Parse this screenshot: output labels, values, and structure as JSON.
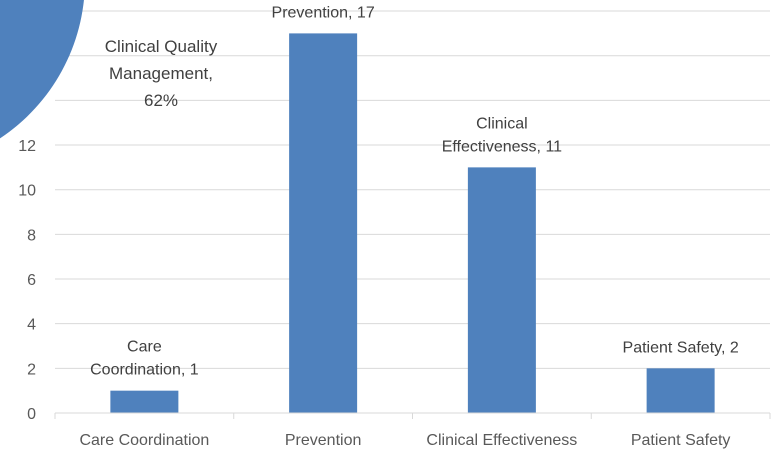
{
  "chart_data": {
    "type": "bar",
    "categories": [
      "Care Coordination",
      "Prevention",
      "Clinical Effectiveness",
      "Patient Safety"
    ],
    "values": [
      1,
      17,
      11,
      2
    ],
    "data_labels": [
      [
        "Care",
        "Coordination, 1"
      ],
      [
        "Prevention, 17"
      ],
      [
        "Clinical",
        "Effectiveness, 11"
      ],
      [
        "Patient Safety, 2"
      ]
    ],
    "ylim": [
      0,
      18
    ],
    "yticks": [
      0,
      2,
      4,
      6,
      8,
      10,
      12
    ],
    "grid": true,
    "colors": {
      "bar": "#4f81bd"
    },
    "overlay_pie": {
      "slice_label": [
        "Clinical Quality",
        "Management,",
        "62%"
      ],
      "value_percent": 62
    }
  }
}
